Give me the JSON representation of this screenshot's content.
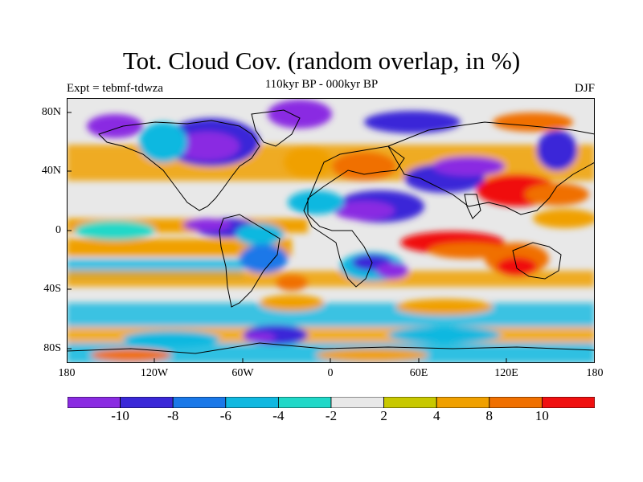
{
  "header": {
    "title": "Tot. Cloud Cov. (random overlap, in %)",
    "experiment": "Expt = tebmf-tdwza",
    "period": "110kyr BP - 000kyr BP",
    "season": "DJF"
  },
  "axes": {
    "y_ticks": [
      "80N",
      "40N",
      "0",
      "40S",
      "80S"
    ],
    "x_ticks": [
      "180",
      "120W",
      "60W",
      "0",
      "60E",
      "120E",
      "180"
    ]
  },
  "colorbar": {
    "labels": [
      "-10",
      "-8",
      "-6",
      "-4",
      "-2",
      "2",
      "4",
      "8",
      "10"
    ],
    "colors": [
      "#8a2be2",
      "#3a28d8",
      "#1a78e8",
      "#10b8e0",
      "#20d8c8",
      "#e8e8e8",
      "#c8c800",
      "#f0a000",
      "#f07000",
      "#f01010"
    ]
  },
  "map": {
    "projection": "cylindrical equidistant",
    "lon_range": [
      -180,
      180
    ],
    "lat_range": [
      -90,
      90
    ],
    "background_color": "#e8e8e8"
  }
}
